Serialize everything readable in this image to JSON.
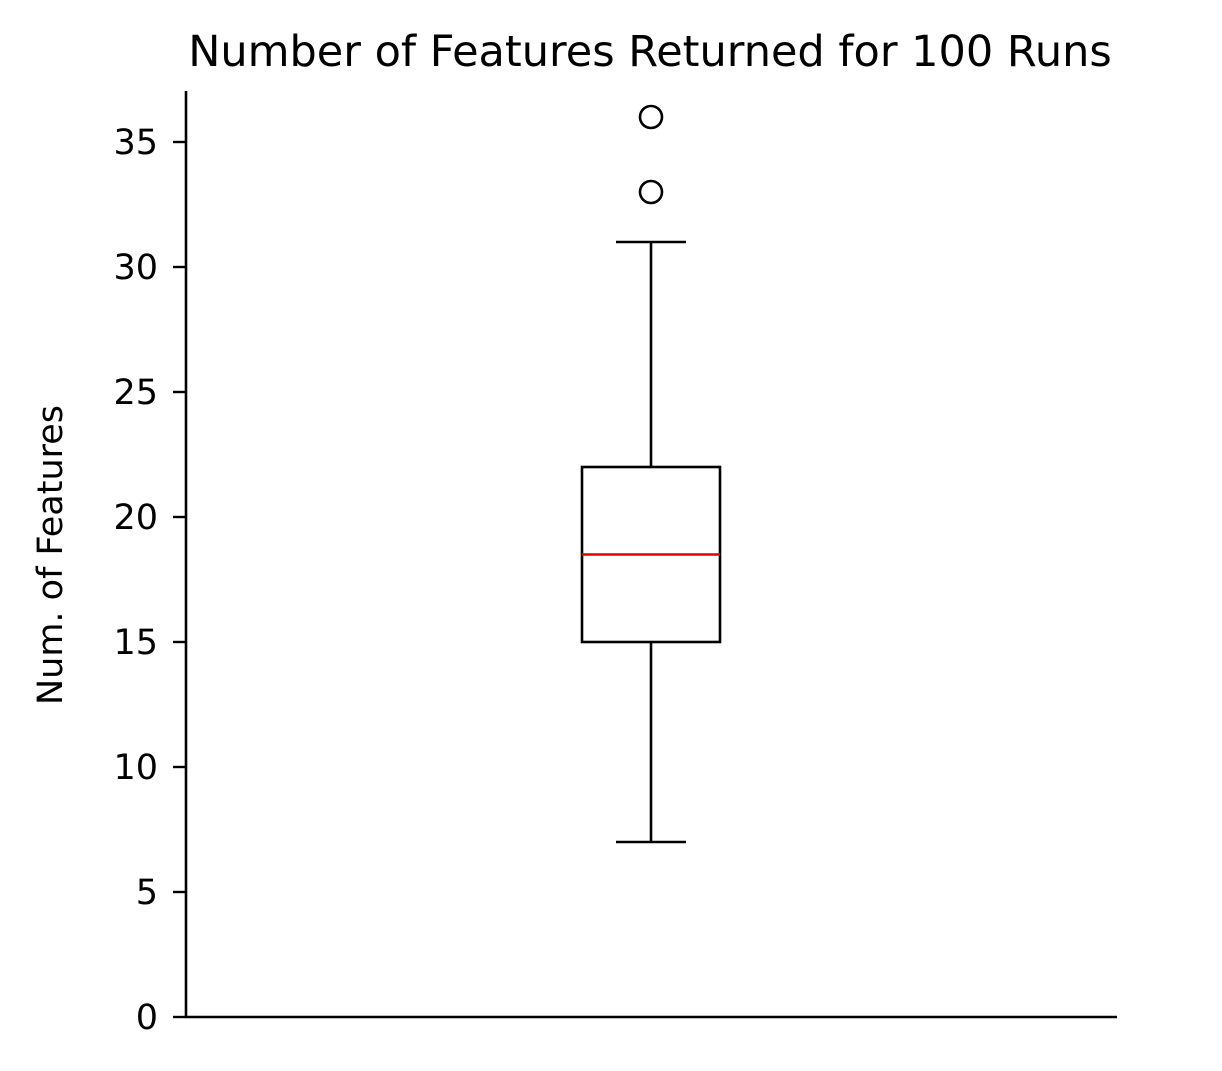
{
  "chart_data": {
    "type": "box",
    "title": "Number of Features Returned for 100 Runs",
    "xlabel": "",
    "ylabel": "Num. of Features",
    "ylim": [
      0,
      37
    ],
    "yticks": [
      0,
      5,
      10,
      15,
      20,
      25,
      30,
      35
    ],
    "ytick_labels": [
      "0",
      "5",
      "10",
      "15",
      "20",
      "25",
      "30",
      "35"
    ],
    "grid": false,
    "box": {
      "whisker_low": 7,
      "q1": 15,
      "median": 18.5,
      "q3": 22,
      "whisker_high": 31,
      "outliers": [
        33,
        36
      ]
    },
    "colors": {
      "box": "#000000",
      "median": "#e00000",
      "outlier_fill": "#ffffff"
    }
  }
}
